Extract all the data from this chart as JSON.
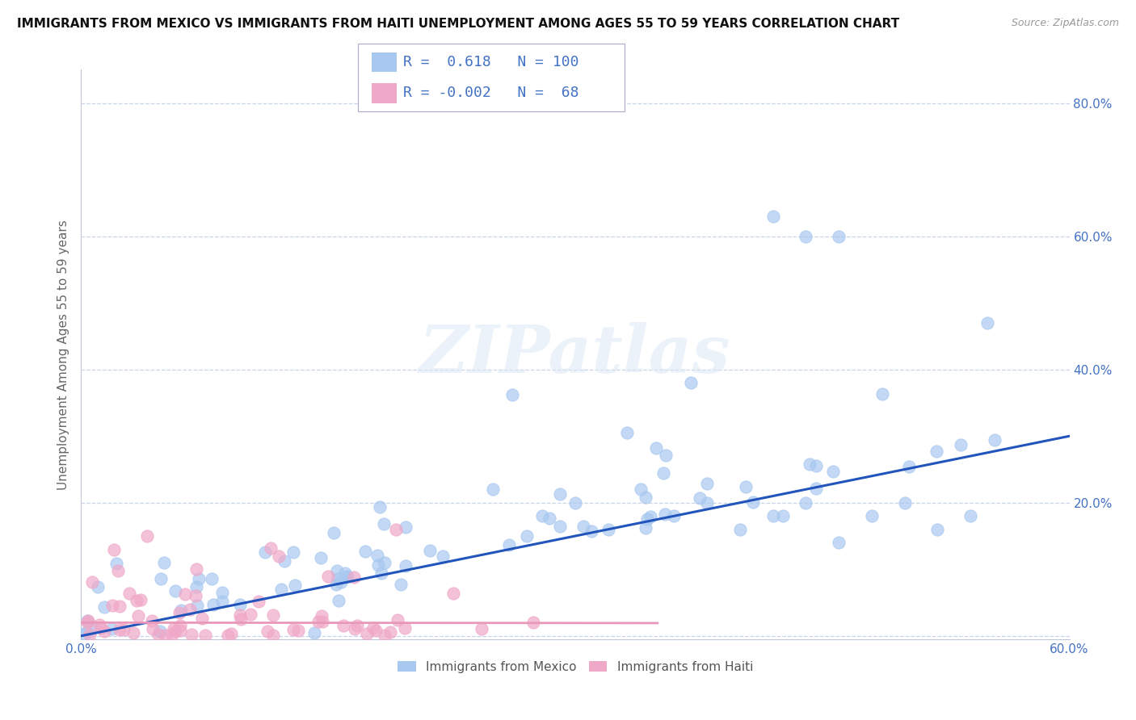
{
  "title": "IMMIGRANTS FROM MEXICO VS IMMIGRANTS FROM HAITI UNEMPLOYMENT AMONG AGES 55 TO 59 YEARS CORRELATION CHART",
  "source": "Source: ZipAtlas.com",
  "ylabel": "Unemployment Among Ages 55 to 59 years",
  "xlim": [
    0.0,
    0.6
  ],
  "ylim": [
    -0.005,
    0.85
  ],
  "mexico_R": 0.618,
  "mexico_N": 100,
  "haiti_R": -0.002,
  "haiti_N": 68,
  "mexico_color": "#a8c8f0",
  "haiti_color": "#f0a8c8",
  "mexico_line_color": "#2255bb",
  "haiti_line_color": "#e898b8",
  "title_fontsize": 11,
  "axis_label_fontsize": 11,
  "tick_fontsize": 11,
  "legend_fontsize": 13,
  "tick_color": "#4472c4"
}
